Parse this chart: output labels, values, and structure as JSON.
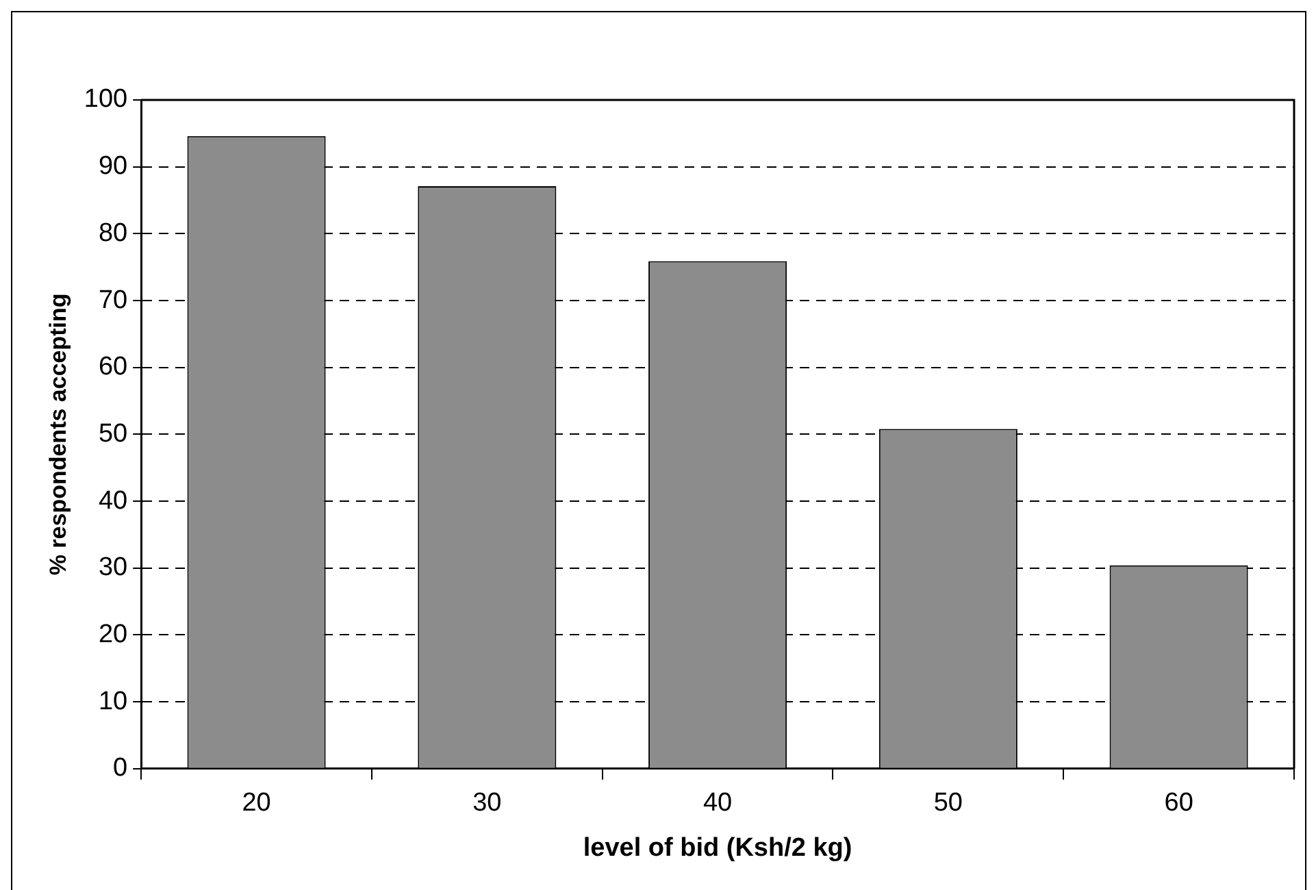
{
  "chart_data": {
    "type": "bar",
    "xlabel": "level of bid (Ksh/2 kg)",
    "ylabel": "% respondents accepting",
    "categories": [
      "20",
      "30",
      "40",
      "50",
      "60"
    ],
    "values": [
      94.6,
      87.1,
      75.9,
      50.8,
      30.4
    ],
    "color": "#8c8c8c",
    "ylim": [
      0,
      100
    ],
    "yticks": [
      0,
      10,
      20,
      30,
      40,
      50,
      60,
      70,
      80,
      90,
      100
    ],
    "grid": "y",
    "legend": false
  }
}
